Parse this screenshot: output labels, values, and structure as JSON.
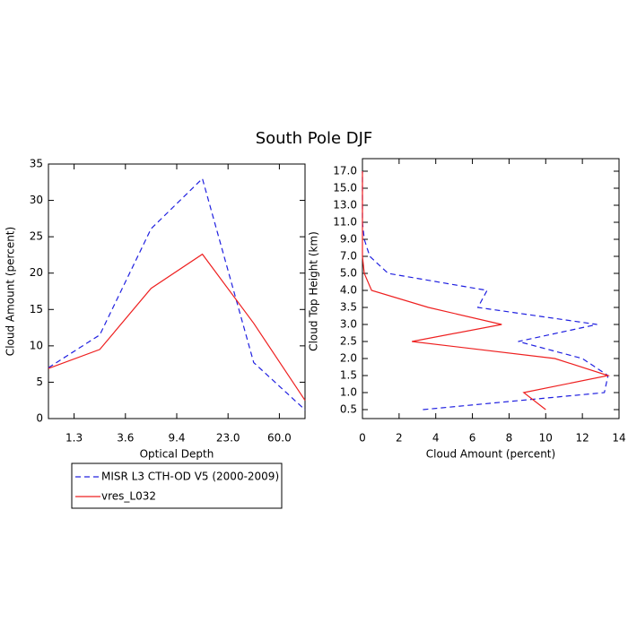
{
  "title": "South Pole DJF",
  "chart_data": [
    {
      "type": "line",
      "xlabel": "Optical Depth",
      "ylabel": "Cloud Amount (percent)",
      "categories": [
        null,
        null,
        null,
        null,
        null,
        null
      ],
      "xlim": [
        0,
        5
      ],
      "xticks": [
        {
          "value": 0.5,
          "label": "1.3"
        },
        {
          "value": 1.5,
          "label": "3.6"
        },
        {
          "value": 2.5,
          "label": "9.4"
        },
        {
          "value": 3.5,
          "label": "23.0"
        },
        {
          "value": 4.5,
          "label": "60.0"
        }
      ],
      "ylim": [
        0,
        35
      ],
      "yticks": [
        0,
        5,
        10,
        15,
        20,
        25,
        30,
        35
      ],
      "series": [
        {
          "name": "MISR L3 CTH-OD V5 (2000-2009)",
          "color": "#2020e0",
          "dash": true,
          "values": [
            7.0,
            11.5,
            26.1,
            33.0,
            7.7,
            1.2
          ]
        },
        {
          "name": "vres_L032",
          "color": "#ee2020",
          "dash": false,
          "values": [
            6.9,
            9.5,
            17.9,
            22.6,
            13.1,
            2.5
          ]
        }
      ]
    },
    {
      "type": "hline",
      "xlabel": "Cloud Amount (percent)",
      "ylabel": "Cloud Top Height (km)",
      "categories": [
        "0.5",
        "1.0",
        "1.5",
        "2.0",
        "2.5",
        "3.0",
        "3.5",
        "4.0",
        "5.0",
        "7.0",
        "9.0",
        "11.0",
        "13.0",
        "15.0",
        "17.0"
      ],
      "xlim": [
        0,
        14
      ],
      "xticks": [
        0,
        2,
        4,
        6,
        8,
        10,
        12,
        14
      ],
      "series": [
        {
          "color": "#2020e0",
          "dash": true,
          "values": [
            3.3,
            13.2,
            13.4,
            12.0,
            8.5,
            12.8,
            6.3,
            6.8,
            1.4,
            0.4,
            0.1,
            0.0,
            0.0,
            0.0,
            0.0
          ]
        },
        {
          "color": "#ee2020",
          "dash": false,
          "values": [
            10.0,
            8.8,
            13.4,
            10.5,
            2.7,
            7.6,
            3.6,
            0.5,
            0.1,
            0.0,
            0.0,
            0.0,
            0.0,
            0.0,
            0.0
          ]
        }
      ]
    }
  ]
}
